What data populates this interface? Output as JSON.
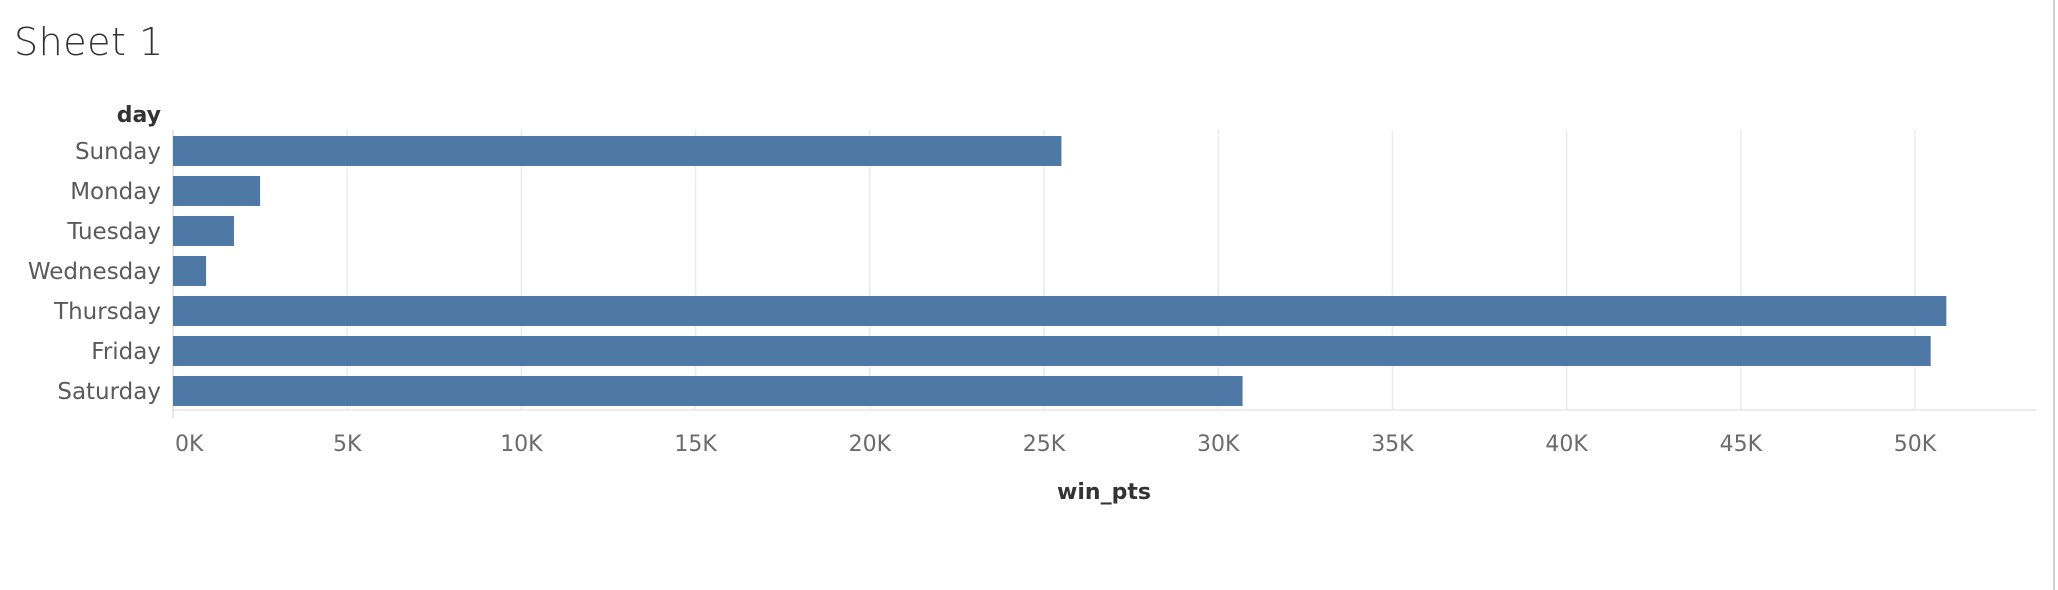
{
  "sheet": {
    "title": "Sheet 1"
  },
  "chart_data": {
    "type": "bar",
    "orientation": "horizontal",
    "categories": [
      "Sunday",
      "Monday",
      "Tuesday",
      "Wednesday",
      "Thursday",
      "Friday",
      "Saturday"
    ],
    "values": [
      25500,
      2500,
      1750,
      950,
      50900,
      50450,
      30700
    ],
    "xlabel": "win_pts",
    "ylabel": "day",
    "xlim": [
      0,
      53000
    ],
    "x_ticks": [
      0,
      5000,
      10000,
      15000,
      20000,
      25000,
      30000,
      35000,
      40000,
      45000,
      50000
    ],
    "x_tick_labels": [
      "0K",
      "5K",
      "10K",
      "15K",
      "20K",
      "25K",
      "30K",
      "35K",
      "40K",
      "45K",
      "50K"
    ],
    "grid": "vertical",
    "bar_color": "#4e79a7",
    "grid_color": "#ebebeb"
  }
}
